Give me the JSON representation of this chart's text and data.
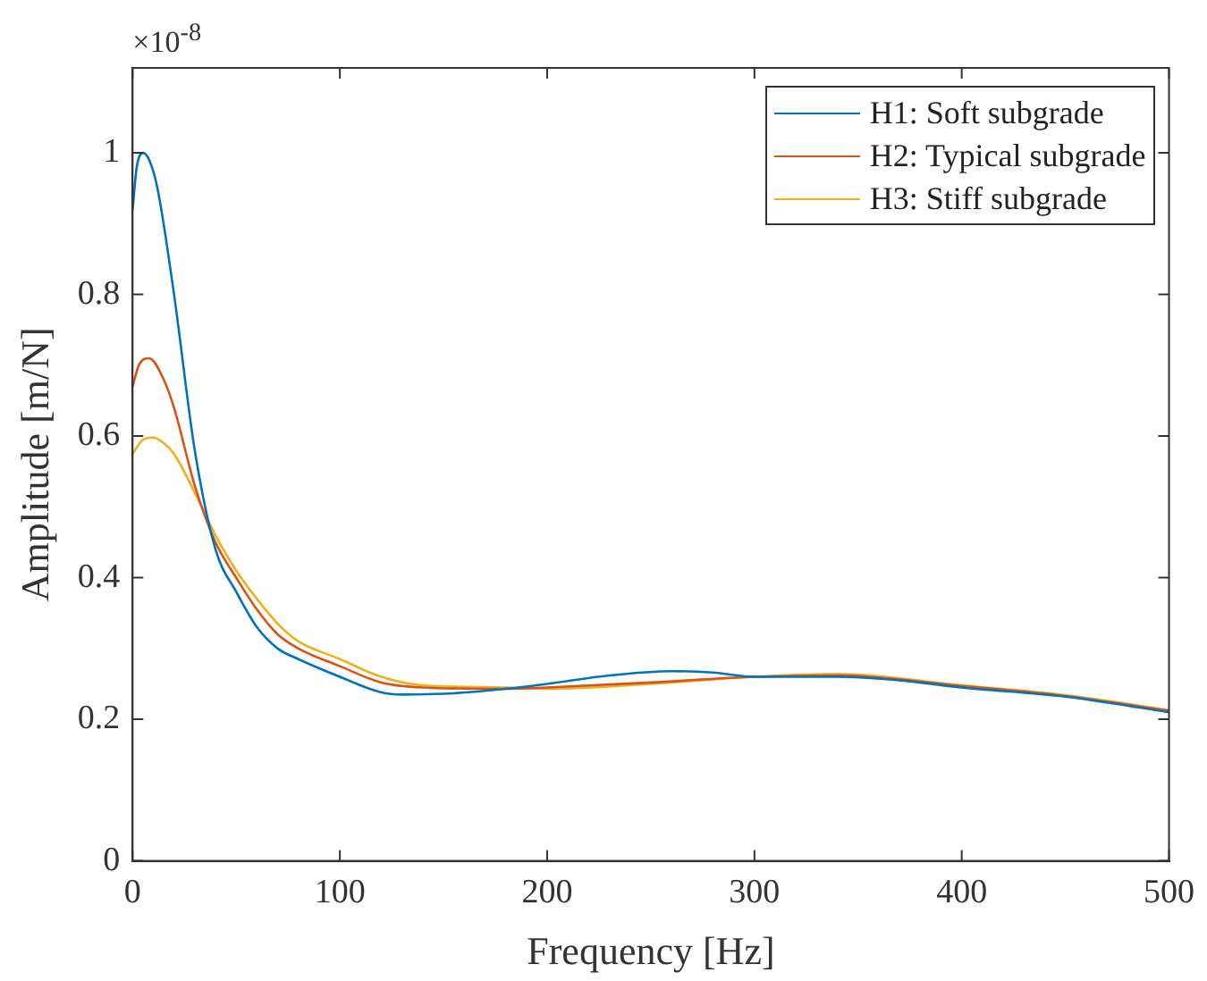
{
  "chart_data": {
    "type": "line",
    "xlabel": "Frequency [Hz]",
    "ylabel": "Amplitude [m/N]",
    "annotations": [
      "×10$^{-8}$"
    ],
    "xlim": [
      0,
      500
    ],
    "xticks": [
      0,
      100,
      200,
      300,
      400,
      500
    ],
    "ylim": [
      0,
      1.12
    ],
    "yticks": [
      0,
      0.2,
      0.4,
      0.6,
      0.8,
      1
    ],
    "grid": false,
    "legend": "top right",
    "marker": "none",
    "line_style": "solid",
    "series": [
      {
        "name": "H1: Soft subgrade",
        "color": "#0072bd",
        "x": [
          0,
          2,
          5,
          8,
          12,
          20,
          30,
          40,
          50,
          60,
          70,
          80,
          100,
          120,
          130,
          150,
          180,
          200,
          230,
          260,
          280,
          300,
          340,
          370,
          400,
          450,
          500
        ],
        "values": [
          0.92,
          0.98,
          1.0,
          0.99,
          0.95,
          0.8,
          0.58,
          0.44,
          0.38,
          0.33,
          0.3,
          0.285,
          0.26,
          0.238,
          0.235,
          0.236,
          0.243,
          0.25,
          0.262,
          0.268,
          0.266,
          0.26,
          0.26,
          0.255,
          0.245,
          0.232,
          0.21
        ]
      },
      {
        "name": "H2: Typical subgrade",
        "color": "#d95319",
        "x": [
          0,
          3,
          8,
          15,
          20,
          30,
          40,
          50,
          60,
          70,
          80,
          100,
          120,
          140,
          180,
          200,
          250,
          300,
          340,
          400,
          450,
          500
        ],
        "values": [
          0.67,
          0.7,
          0.71,
          0.68,
          0.64,
          0.53,
          0.45,
          0.4,
          0.355,
          0.32,
          0.3,
          0.275,
          0.252,
          0.245,
          0.243,
          0.245,
          0.252,
          0.26,
          0.262,
          0.247,
          0.233,
          0.212
        ]
      },
      {
        "name": "H3: Stiff subgrade",
        "color": "#edb120",
        "x": [
          0,
          5,
          10,
          15,
          20,
          30,
          40,
          50,
          60,
          70,
          80,
          100,
          120,
          140,
          180,
          200,
          250,
          300,
          340,
          400,
          450,
          500
        ],
        "values": [
          0.575,
          0.595,
          0.598,
          0.59,
          0.575,
          0.52,
          0.46,
          0.41,
          0.37,
          0.335,
          0.31,
          0.285,
          0.26,
          0.248,
          0.245,
          0.243,
          0.25,
          0.26,
          0.264,
          0.248,
          0.234,
          0.213
        ]
      }
    ]
  }
}
